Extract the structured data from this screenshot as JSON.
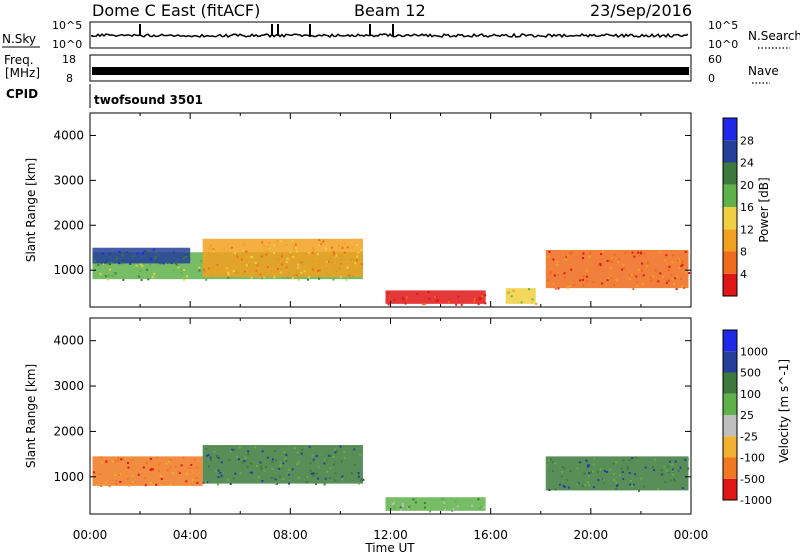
{
  "header": {
    "title": "Dome C East (fitACF)",
    "beam": "Beam 12",
    "date": "23/Sep/2016"
  },
  "top_panels": {
    "nsky_label": "N.Sky",
    "nsky_ticks": [
      "10^5",
      "10^0"
    ],
    "nsearch_label": "N.Search",
    "nsearch_ticks": [
      "10^5",
      "10^0"
    ],
    "freq_label_1": "Freq.",
    "freq_label_2": "[MHz]",
    "freq_ticks": [
      "18",
      "8"
    ],
    "nave_label": "Nave",
    "nave_ticks": [
      "60",
      "0"
    ],
    "cpid_label": "CPID",
    "cpid_value": "twofsound 3501"
  },
  "chart_data": [
    {
      "type": "heatmap",
      "title": "Power",
      "ylabel": "Slant Range [km]",
      "xlabel": "",
      "ylim": [
        180,
        4500
      ],
      "y_ticks": [
        1000,
        2000,
        3000,
        4000
      ],
      "colorbar_label": "Power [dB]",
      "colorbar_ticks": [
        "4",
        "8",
        "12",
        "16",
        "20",
        "24",
        "28"
      ],
      "colorbar_colors": [
        "#1f28e6",
        "#24409a",
        "#3d7a3b",
        "#5fb14a",
        "#f0d040",
        "#f2a020",
        "#ef6a1a",
        "#e01616"
      ],
      "regions": [
        {
          "t": [
            0.1,
            10.9
          ],
          "r": [
            800,
            1400
          ],
          "level": 3
        },
        {
          "t": [
            0.1,
            4.0
          ],
          "r": [
            1150,
            1500
          ],
          "level": 1
        },
        {
          "t": [
            4.5,
            10.9
          ],
          "r": [
            850,
            1700
          ],
          "level": 5
        },
        {
          "t": [
            11.8,
            15.8
          ],
          "r": [
            250,
            550
          ],
          "level": 7
        },
        {
          "t": [
            16.6,
            17.8
          ],
          "r": [
            250,
            600
          ],
          "level": 4
        },
        {
          "t": [
            18.2,
            23.9
          ],
          "r": [
            600,
            1450
          ],
          "level": 6
        }
      ]
    },
    {
      "type": "heatmap",
      "title": "Velocity",
      "ylabel": "Slant Range [km]",
      "xlabel": "Time UT",
      "ylim": [
        180,
        4500
      ],
      "y_ticks": [
        1000,
        2000,
        3000,
        4000
      ],
      "x_tick_labels": [
        "00:00",
        "04:00",
        "08:00",
        "12:00",
        "16:00",
        "20:00",
        "00:00"
      ],
      "colorbar_label": "Velocity [m s^-1]",
      "colorbar_ticks": [
        "1000",
        "500",
        "100",
        "25",
        "-25",
        "-100",
        "-500",
        "-1000"
      ],
      "colorbar_colors": [
        "#1f28e6",
        "#24409a",
        "#3d7a3b",
        "#5fb14a",
        "#bfbfbf",
        "#f0b030",
        "#f07820",
        "#e01616"
      ],
      "regions": [
        {
          "t": [
            0.1,
            4.5
          ],
          "r": [
            800,
            1450
          ],
          "level": 6
        },
        {
          "t": [
            4.5,
            10.9
          ],
          "r": [
            850,
            1700
          ],
          "level": 2
        },
        {
          "t": [
            11.8,
            15.8
          ],
          "r": [
            250,
            550
          ],
          "level": 3
        },
        {
          "t": [
            18.2,
            23.9
          ],
          "r": [
            700,
            1450
          ],
          "level": 2
        }
      ]
    }
  ]
}
